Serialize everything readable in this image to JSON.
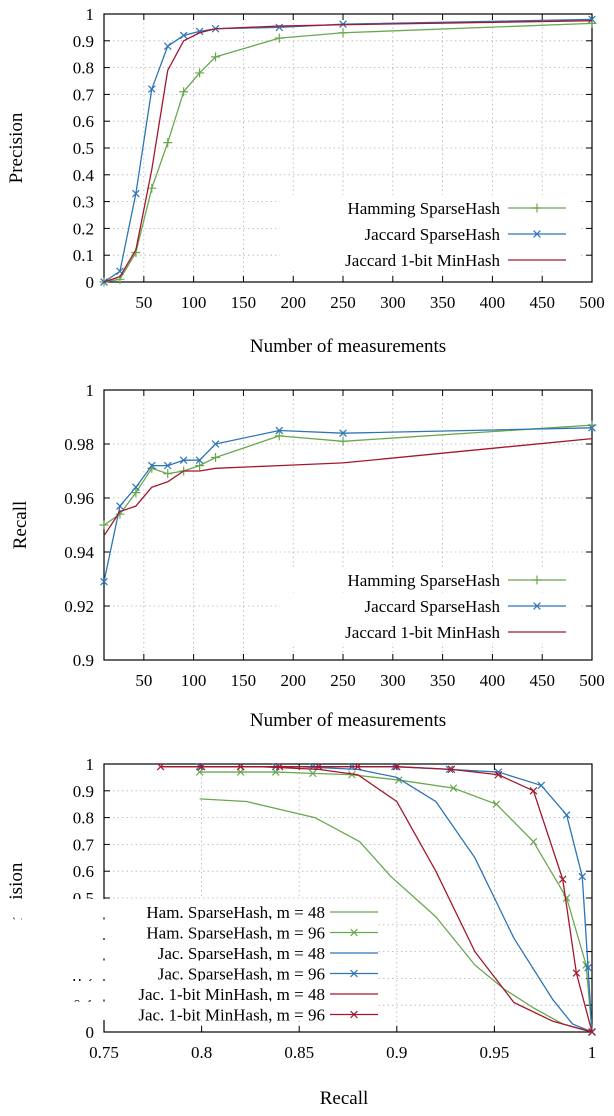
{
  "chart_data": [
    {
      "type": "line",
      "xlabel": "Number of measurements",
      "ylabel": "Precision",
      "xlim": [
        10,
        500
      ],
      "ylim": [
        0,
        1
      ],
      "xticks": [
        50,
        100,
        150,
        200,
        250,
        300,
        350,
        400,
        450,
        500
      ],
      "yticks": [
        0,
        0.1,
        0.2,
        0.3,
        0.4,
        0.5,
        0.6,
        0.7,
        0.8,
        0.9,
        1
      ],
      "grid": true,
      "legend_position": "bottom-right",
      "series": [
        {
          "name": "Hamming SparseHash",
          "color": "#6aa84f",
          "marker": "plus",
          "x": [
            10,
            26,
            42,
            58,
            74,
            90,
            106,
            122,
            186,
            250,
            500
          ],
          "y": [
            0.0,
            0.01,
            0.11,
            0.35,
            0.52,
            0.71,
            0.78,
            0.84,
            0.91,
            0.93,
            0.965
          ]
        },
        {
          "name": "Jaccard SparseHash",
          "color": "#2e75b6",
          "marker": "x",
          "x": [
            10,
            26,
            42,
            58,
            74,
            90,
            106,
            122,
            186,
            250,
            500
          ],
          "y": [
            0.0,
            0.04,
            0.33,
            0.72,
            0.88,
            0.92,
            0.935,
            0.945,
            0.95,
            0.962,
            0.98
          ]
        },
        {
          "name": "Jaccard 1-bit MinHash",
          "color": "#a3182f",
          "marker": "none",
          "x": [
            10,
            26,
            42,
            58,
            74,
            90,
            106,
            122,
            186,
            250,
            500
          ],
          "y": [
            0.0,
            0.02,
            0.12,
            0.42,
            0.79,
            0.9,
            0.93,
            0.945,
            0.955,
            0.96,
            0.975
          ]
        }
      ]
    },
    {
      "type": "line",
      "xlabel": "Number of measurements",
      "ylabel": "Recall",
      "xlim": [
        10,
        500
      ],
      "ylim": [
        0.9,
        1
      ],
      "xticks": [
        50,
        100,
        150,
        200,
        250,
        300,
        350,
        400,
        450,
        500
      ],
      "yticks": [
        0.9,
        0.92,
        0.94,
        0.96,
        0.98,
        1
      ],
      "ytick_labels": [
        "0.9",
        "0.92",
        "0.94",
        "0.96",
        "0.98",
        "1"
      ],
      "grid": true,
      "legend_position": "bottom-right",
      "series": [
        {
          "name": "Hamming SparseHash",
          "color": "#6aa84f",
          "marker": "plus",
          "x": [
            10,
            26,
            42,
            58,
            74,
            90,
            106,
            122,
            186,
            250,
            500
          ],
          "y": [
            0.95,
            0.954,
            0.962,
            0.971,
            0.969,
            0.97,
            0.972,
            0.975,
            0.983,
            0.981,
            0.987
          ]
        },
        {
          "name": "Jaccard SparseHash",
          "color": "#2e75b6",
          "marker": "x",
          "x": [
            10,
            26,
            42,
            58,
            74,
            90,
            106,
            122,
            186,
            250,
            500
          ],
          "y": [
            0.929,
            0.957,
            0.964,
            0.972,
            0.972,
            0.974,
            0.974,
            0.98,
            0.985,
            0.984,
            0.986
          ]
        },
        {
          "name": "Jaccard 1-bit MinHash",
          "color": "#a3182f",
          "marker": "none",
          "x": [
            10,
            26,
            42,
            58,
            74,
            90,
            106,
            122,
            186,
            250,
            500
          ],
          "y": [
            0.946,
            0.955,
            0.957,
            0.964,
            0.966,
            0.97,
            0.97,
            0.971,
            0.972,
            0.973,
            0.982
          ]
        }
      ]
    },
    {
      "type": "line",
      "xlabel": "Recall",
      "ylabel": "Precision",
      "xlim": [
        0.75,
        1
      ],
      "ylim": [
        0,
        1
      ],
      "xticks": [
        0.75,
        0.8,
        0.85,
        0.9,
        0.95,
        1
      ],
      "xtick_labels": [
        "0.75",
        "0.8",
        "0.85",
        "0.9",
        "0.95",
        "1"
      ],
      "yticks": [
        0,
        0.1,
        0.2,
        0.3,
        0.4,
        0.5,
        0.6,
        0.7,
        0.8,
        0.9,
        1
      ],
      "grid": true,
      "legend_position": "bottom-left",
      "series": [
        {
          "name": "Ham. SparseHash, m = 48",
          "color": "#6aa84f",
          "marker": "none",
          "x": [
            0.799,
            0.823,
            0.858,
            0.881,
            0.897,
            0.92,
            0.94,
            0.955,
            0.97,
            0.985,
            0.995,
            1.0
          ],
          "y": [
            0.87,
            0.86,
            0.8,
            0.71,
            0.58,
            0.43,
            0.25,
            0.16,
            0.09,
            0.03,
            0.01,
            0.0
          ]
        },
        {
          "name": "Ham. SparseHash, m = 96",
          "color": "#6aa84f",
          "marker": "x",
          "x": [
            0.799,
            0.82,
            0.838,
            0.857,
            0.877,
            0.901,
            0.929,
            0.951,
            0.97,
            0.987,
            0.997,
            1.0
          ],
          "y": [
            0.97,
            0.97,
            0.97,
            0.965,
            0.96,
            0.94,
            0.91,
            0.85,
            0.71,
            0.5,
            0.25,
            0.0
          ]
        },
        {
          "name": "Jac. SparseHash, m = 48",
          "color": "#2e75b6",
          "marker": "none",
          "x": [
            0.8,
            0.85,
            0.88,
            0.9,
            0.92,
            0.94,
            0.96,
            0.98,
            0.99,
            1.0
          ],
          "y": [
            0.99,
            0.99,
            0.98,
            0.95,
            0.86,
            0.65,
            0.35,
            0.12,
            0.03,
            0.0
          ]
        },
        {
          "name": "Jac. SparseHash, m = 96",
          "color": "#2e75b6",
          "marker": "x",
          "x": [
            0.799,
            0.82,
            0.838,
            0.857,
            0.877,
            0.899,
            0.927,
            0.952,
            0.974,
            0.987,
            0.995,
            0.998,
            1.0
          ],
          "y": [
            0.99,
            0.99,
            0.99,
            0.99,
            0.99,
            0.99,
            0.98,
            0.97,
            0.92,
            0.81,
            0.58,
            0.24,
            0.0
          ]
        },
        {
          "name": "Jac. 1-bit MinHash, m = 48",
          "color": "#a3182f",
          "marker": "none",
          "x": [
            0.78,
            0.83,
            0.86,
            0.88,
            0.9,
            0.92,
            0.94,
            0.96,
            0.98,
            0.995,
            1.0
          ],
          "y": [
            0.99,
            0.99,
            0.98,
            0.96,
            0.86,
            0.6,
            0.3,
            0.11,
            0.04,
            0.01,
            0.0
          ]
        },
        {
          "name": "Jac. 1-bit MinHash, m = 96",
          "color": "#a3182f",
          "marker": "x",
          "x": [
            0.779,
            0.8,
            0.82,
            0.84,
            0.86,
            0.88,
            0.9,
            0.928,
            0.952,
            0.97,
            0.985,
            0.992,
            1.0
          ],
          "y": [
            0.99,
            0.99,
            0.99,
            0.99,
            0.99,
            0.99,
            0.99,
            0.98,
            0.96,
            0.9,
            0.57,
            0.22,
            0.0
          ]
        }
      ]
    }
  ]
}
